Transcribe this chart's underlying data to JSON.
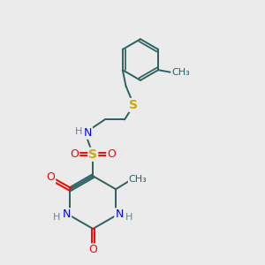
{
  "background_color": "#ebebeb",
  "bond_color": "#2d6060",
  "nitrogen_color": "#0000ff",
  "oxygen_color": "#ff0000",
  "sulfur_color": "#ccaa00",
  "hydrogen_color": "#708090",
  "figsize": [
    3.0,
    3.0
  ],
  "dpi": 100,
  "xlim": [
    0,
    10
  ],
  "ylim": [
    0,
    10
  ]
}
